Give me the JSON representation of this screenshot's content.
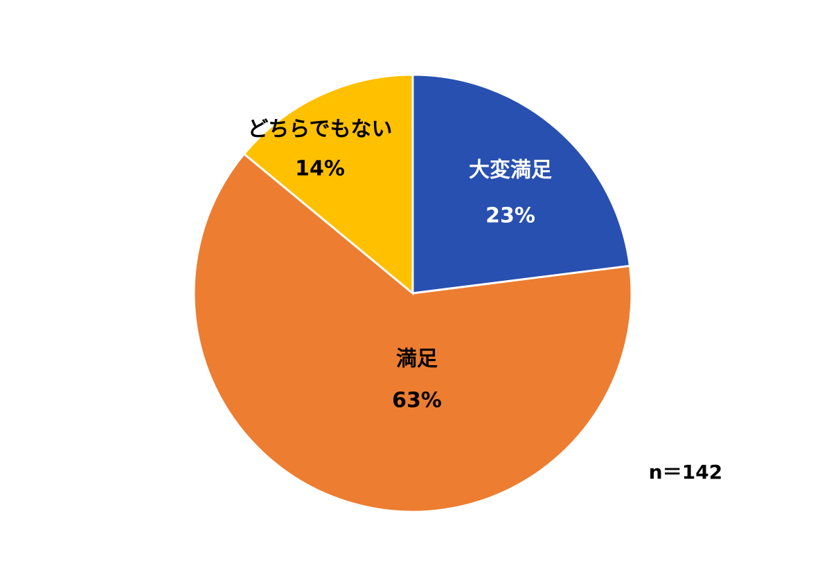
{
  "chart_data": {
    "type": "pie",
    "categories": [
      "大変満足",
      "満足",
      "どちらでもない"
    ],
    "values": [
      23,
      63,
      14
    ],
    "value_labels": [
      "23%",
      "63%",
      "14%"
    ],
    "colors": [
      "#2850b0",
      "#ed7d31",
      "#ffc000"
    ],
    "label_colors": [
      "#ffffff",
      "#000000",
      "#000000"
    ],
    "annotation": "n＝142"
  }
}
